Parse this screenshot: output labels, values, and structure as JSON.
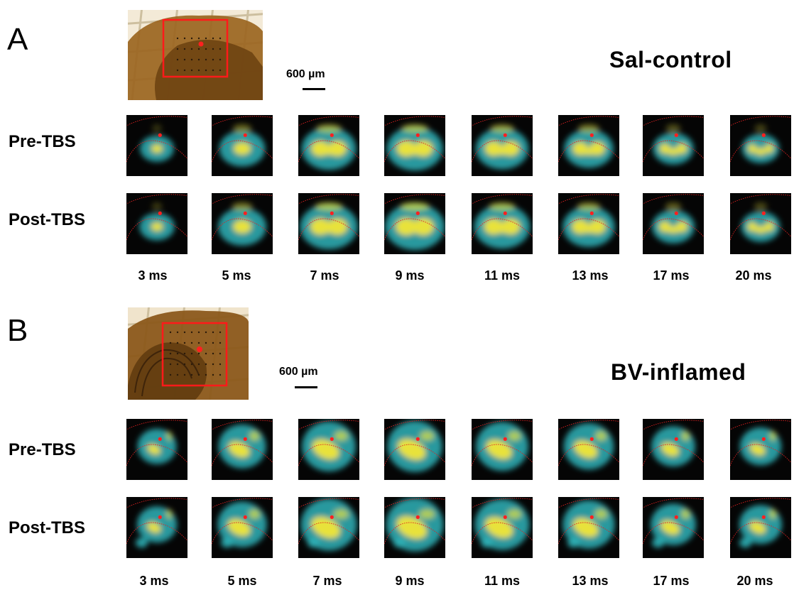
{
  "panels": [
    {
      "letter": "A",
      "condition": "Sal-control",
      "scale_bar": "600 µm",
      "rows": [
        "Pre-TBS",
        "Post-TBS"
      ],
      "time_labels": [
        "3 ms",
        "5 ms",
        "7 ms",
        "9 ms",
        "11 ms",
        "13 ms",
        "17 ms",
        "20 ms"
      ]
    },
    {
      "letter": "B",
      "condition": "BV-inflamed",
      "scale_bar": "600 µm",
      "rows": [
        "Pre-TBS",
        "Post-TBS"
      ],
      "time_labels": [
        "3 ms",
        "5 ms",
        "7 ms",
        "9 ms",
        "11 ms",
        "13 ms",
        "17 ms",
        "20 ms"
      ]
    }
  ],
  "colors": {
    "map_background": "#050505",
    "positive_response": "#e8e23a",
    "negative_response": "#2fb3b8",
    "outline": "#e02020",
    "slice_tissue": "#8a5a1c"
  }
}
